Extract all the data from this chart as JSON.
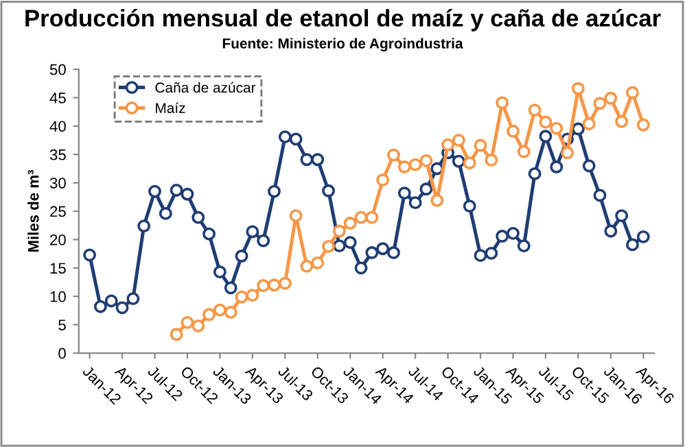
{
  "chart_data": {
    "type": "line",
    "title": "Producción mensual de etanol de maíz y caña de azúcar",
    "subtitle": "Fuente: Ministerio de Agroindustria",
    "ylabel": "Miles de m³",
    "categories": [
      "Jan-12",
      null,
      null,
      "Apr-12",
      null,
      null,
      "Jul-12",
      null,
      null,
      "Oct-12",
      null,
      null,
      "Jan-13",
      null,
      null,
      "Apr-13",
      null,
      null,
      "Jul-13",
      null,
      null,
      "Oct-13",
      null,
      null,
      "Jan-14",
      null,
      null,
      "Apr-14",
      null,
      null,
      "Jul-14",
      null,
      null,
      "Oct-14",
      null,
      null,
      "Jan-15",
      null,
      null,
      "Apr-15",
      null,
      null,
      "Jul-15",
      null,
      null,
      "Oct-15",
      null,
      null,
      "Jan-16",
      null,
      null,
      "Apr-16"
    ],
    "series": [
      {
        "name": "Caña de azúcar",
        "color": "#1f3d73",
        "values": [
          17.3,
          8.2,
          9.2,
          8.0,
          9.6,
          22.4,
          28.5,
          24.6,
          28.7,
          28.0,
          23.9,
          21.0,
          14.3,
          11.5,
          17.1,
          21.4,
          19.8,
          28.5,
          38.1,
          37.7,
          34.1,
          34.1,
          28.6,
          18.9,
          19.5,
          15.0,
          17.7,
          18.4,
          17.7,
          28.2,
          26.5,
          28.9,
          32.5,
          35.3,
          33.8,
          25.9,
          17.2,
          17.6,
          20.6,
          21.1,
          18.9,
          31.6,
          38.2,
          32.8,
          37.7,
          39.5,
          33.0,
          27.8,
          21.5,
          24.2,
          19.1,
          20.5
        ]
      },
      {
        "name": "Maíz",
        "color": "#f79646",
        "values": [
          null,
          null,
          null,
          null,
          null,
          null,
          null,
          null,
          3.3,
          5.4,
          4.8,
          6.8,
          7.6,
          7.2,
          9.9,
          10.2,
          11.9,
          12.0,
          12.3,
          24.2,
          15.3,
          15.9,
          18.8,
          21.5,
          22.9,
          23.9,
          23.9,
          30.5,
          34.9,
          32.8,
          33.2,
          33.9,
          26.9,
          36.7,
          37.5,
          33.5,
          36.6,
          34.0,
          44.1,
          39.1,
          35.5,
          42.8,
          40.7,
          39.6,
          35.3,
          46.6,
          40.4,
          44.0,
          44.9,
          40.8,
          45.9,
          40.2
        ]
      }
    ],
    "ylim": [
      0,
      50
    ],
    "yticks": [
      0,
      5,
      10,
      15,
      20,
      25,
      30,
      35,
      40,
      45,
      50
    ],
    "marker": "circle",
    "line_style": "solid",
    "legend": "top left",
    "grid": false
  }
}
